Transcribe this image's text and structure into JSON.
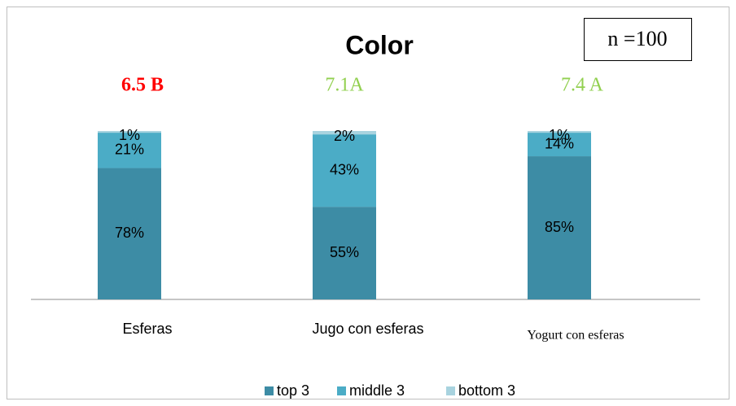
{
  "chart_data": {
    "type": "stacked_bar",
    "title": "Color",
    "note": "n =100",
    "annotations": [
      {
        "text": "6.5 B",
        "color": "#ff0000"
      },
      {
        "text": "7.1A",
        "color": "#92d050"
      },
      {
        "text": "7.4 A",
        "color": "#92d050"
      }
    ],
    "categories": [
      "Esferas",
      "Jugo con esferas",
      "Yogurt con esferas"
    ],
    "series": [
      {
        "name": "top 3",
        "color": "#3d8ca5",
        "values": [
          78,
          55,
          85
        ],
        "value_labels": [
          "78%",
          "55%",
          "85%"
        ]
      },
      {
        "name": "middle 3",
        "color": "#4bacc6",
        "values": [
          21,
          43,
          14
        ],
        "value_labels": [
          "21%",
          "43%",
          "14%"
        ]
      },
      {
        "name": "bottom 3",
        "color": "#a8d3df",
        "values": [
          1,
          2,
          1
        ],
        "value_labels": [
          "1%",
          "2%",
          "1%"
        ]
      }
    ],
    "legend": "bottom"
  }
}
